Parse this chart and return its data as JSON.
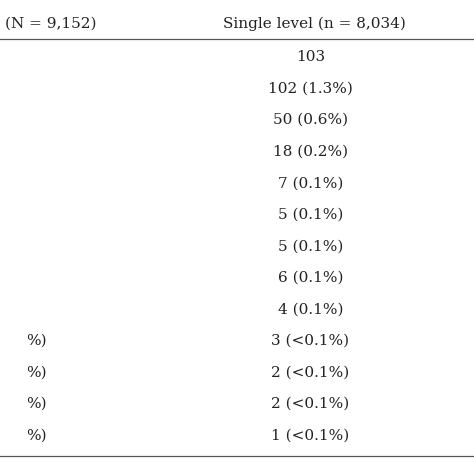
{
  "col1_header": "(N = 9,152)",
  "col2_header": "Single level (n = 8,034)",
  "col2_rows": [
    "103",
    "102 (1.3%)",
    "50 (0.6%)",
    "18 (0.2%)",
    "7 (0.1%)",
    "5 (0.1%)",
    "5 (0.1%)",
    "6 (0.1%)",
    "4 (0.1%)",
    "3 (<0.1%)",
    "2 (<0.1%)",
    "2 (<0.1%)",
    "1 (<0.1%)"
  ],
  "left_partial": [
    "",
    "",
    "",
    "",
    "",
    "",
    "",
    "",
    "",
    "%)",
    "%)",
    "%)",
    "%)"
  ],
  "background_color": "#ffffff",
  "text_color": "#222222",
  "line_color": "#555555",
  "font_size": 11.0,
  "header_font_size": 11.0
}
